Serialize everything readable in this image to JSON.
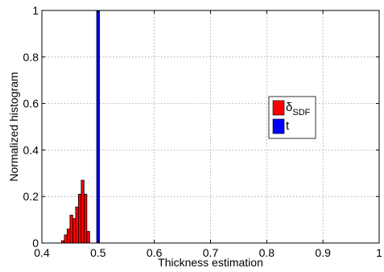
{
  "chart_data": {
    "type": "bar",
    "xlabel": "Thickness estimation",
    "ylabel": "Normalized histogram",
    "xlim": [
      0.4,
      1.0
    ],
    "ylim": [
      0,
      1.0
    ],
    "grid": true,
    "x_ticks": [
      "0.4",
      "0.5",
      "0.6",
      "0.7",
      "0.8",
      "0.9",
      "1"
    ],
    "y_ticks": [
      "0",
      "0.2",
      "0.4",
      "0.6",
      "0.8",
      "1"
    ],
    "legend_position": "center-right",
    "series": [
      {
        "name": "δSDF",
        "legend_main": "δ",
        "legend_sub": "SDF",
        "color": "#ff0000",
        "bin_width": 0.005,
        "bins": [
          {
            "x": 0.4375,
            "y": 0.01
          },
          {
            "x": 0.4425,
            "y": 0.035
          },
          {
            "x": 0.4475,
            "y": 0.06
          },
          {
            "x": 0.4525,
            "y": 0.12
          },
          {
            "x": 0.4575,
            "y": 0.105
          },
          {
            "x": 0.4625,
            "y": 0.155
          },
          {
            "x": 0.4675,
            "y": 0.21
          },
          {
            "x": 0.4725,
            "y": 0.27
          },
          {
            "x": 0.4775,
            "y": 0.21
          },
          {
            "x": 0.4825,
            "y": 0.05
          }
        ]
      },
      {
        "name": "t",
        "legend_main": "t",
        "legend_sub": "",
        "color": "#0000ff",
        "bin_width": 0.005,
        "bins": [
          {
            "x": 0.5,
            "y": 1.0
          }
        ]
      }
    ]
  }
}
